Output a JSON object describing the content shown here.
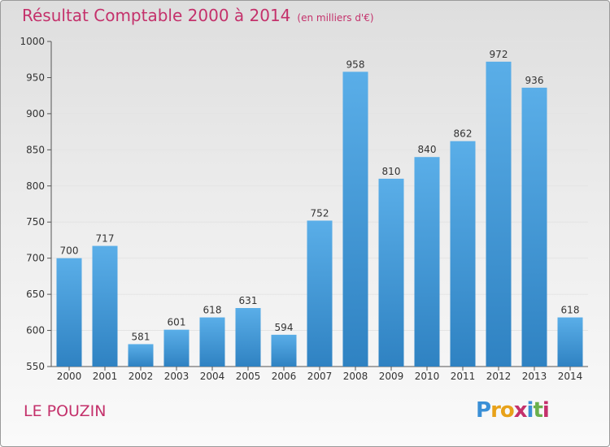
{
  "title": "Résultat Comptable 2000 à 2014",
  "subtitle": "(en milliers d'€)",
  "commune": "LE POUZIN",
  "logo": {
    "text": "Proxiti",
    "letters": [
      {
        "ch": "P",
        "color": "#3a8fd6"
      },
      {
        "ch": "r",
        "color": "#e8a21a"
      },
      {
        "ch": "o",
        "color": "#e8a21a"
      },
      {
        "ch": "x",
        "color": "#c4316b"
      },
      {
        "ch": "i",
        "color": "#3a8fd6"
      },
      {
        "ch": "t",
        "color": "#6ab04c"
      },
      {
        "ch": "i",
        "color": "#c4316b"
      }
    ]
  },
  "colors": {
    "bar_top": "#5aaee8",
    "bar_bottom": "#2f82c2",
    "title": "#c4316b",
    "grid": "#e4e4e4"
  },
  "chart_data": {
    "type": "bar",
    "title": "Résultat Comptable 2000 à 2014",
    "subtitle": "(en milliers d'€)",
    "xlabel": "",
    "ylabel": "",
    "categories": [
      "2000",
      "2001",
      "2002",
      "2003",
      "2004",
      "2005",
      "2006",
      "2007",
      "2008",
      "2009",
      "2010",
      "2011",
      "2012",
      "2013",
      "2014"
    ],
    "values": [
      700,
      717,
      581,
      601,
      618,
      631,
      594,
      752,
      958,
      810,
      840,
      862,
      972,
      936,
      618
    ],
    "ylim": [
      550,
      1000
    ],
    "yticks": [
      550,
      600,
      650,
      700,
      750,
      800,
      850,
      900,
      950,
      1000
    ],
    "grid": true
  }
}
